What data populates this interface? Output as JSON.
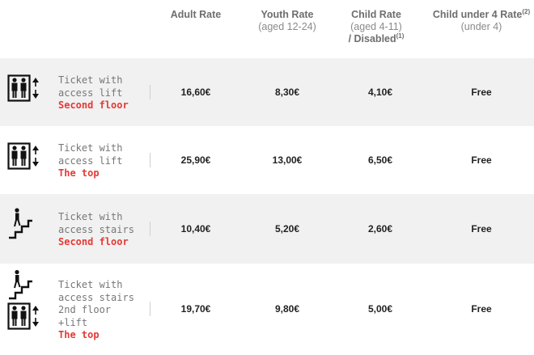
{
  "headers": {
    "adult": {
      "name": "Adult Rate"
    },
    "youth": {
      "name": "Youth Rate",
      "sub": "(aged 12-24)"
    },
    "child": {
      "name": "Child Rate",
      "sub": "(aged 4-11)",
      "name2": "/ Disabled",
      "note": "(1)"
    },
    "under4": {
      "name": "Child under 4 Rate",
      "note": "(2)",
      "sub": "(under 4)"
    }
  },
  "rows": [
    {
      "label_lines": [
        "Ticket with",
        "access lift"
      ],
      "destination": "Second floor",
      "adult": "16,60€",
      "youth": "8,30€",
      "child": "4,10€",
      "under4": "Free",
      "icons": [
        "lift-icon"
      ]
    },
    {
      "label_lines": [
        "Ticket with",
        "access lift"
      ],
      "destination": "The top",
      "adult": "25,90€",
      "youth": "13,00€",
      "child": "6,50€",
      "under4": "Free",
      "icons": [
        "lift-icon"
      ]
    },
    {
      "label_lines": [
        "Ticket with",
        "access stairs"
      ],
      "destination": "Second floor",
      "adult": "10,40€",
      "youth": "5,20€",
      "child": "2,60€",
      "under4": "Free",
      "icons": [
        "stairs-icon"
      ]
    },
    {
      "label_lines": [
        "Ticket with",
        "access stairs",
        "2nd floor",
        "+lift"
      ],
      "destination": "The top",
      "adult": "19,70€",
      "youth": "9,80€",
      "child": "5,00€",
      "under4": "Free",
      "icons": [
        "stairs-icon",
        "lift-icon"
      ]
    }
  ],
  "colors": {
    "destination": "#e53935",
    "row_alt": "#f1f1f1"
  }
}
